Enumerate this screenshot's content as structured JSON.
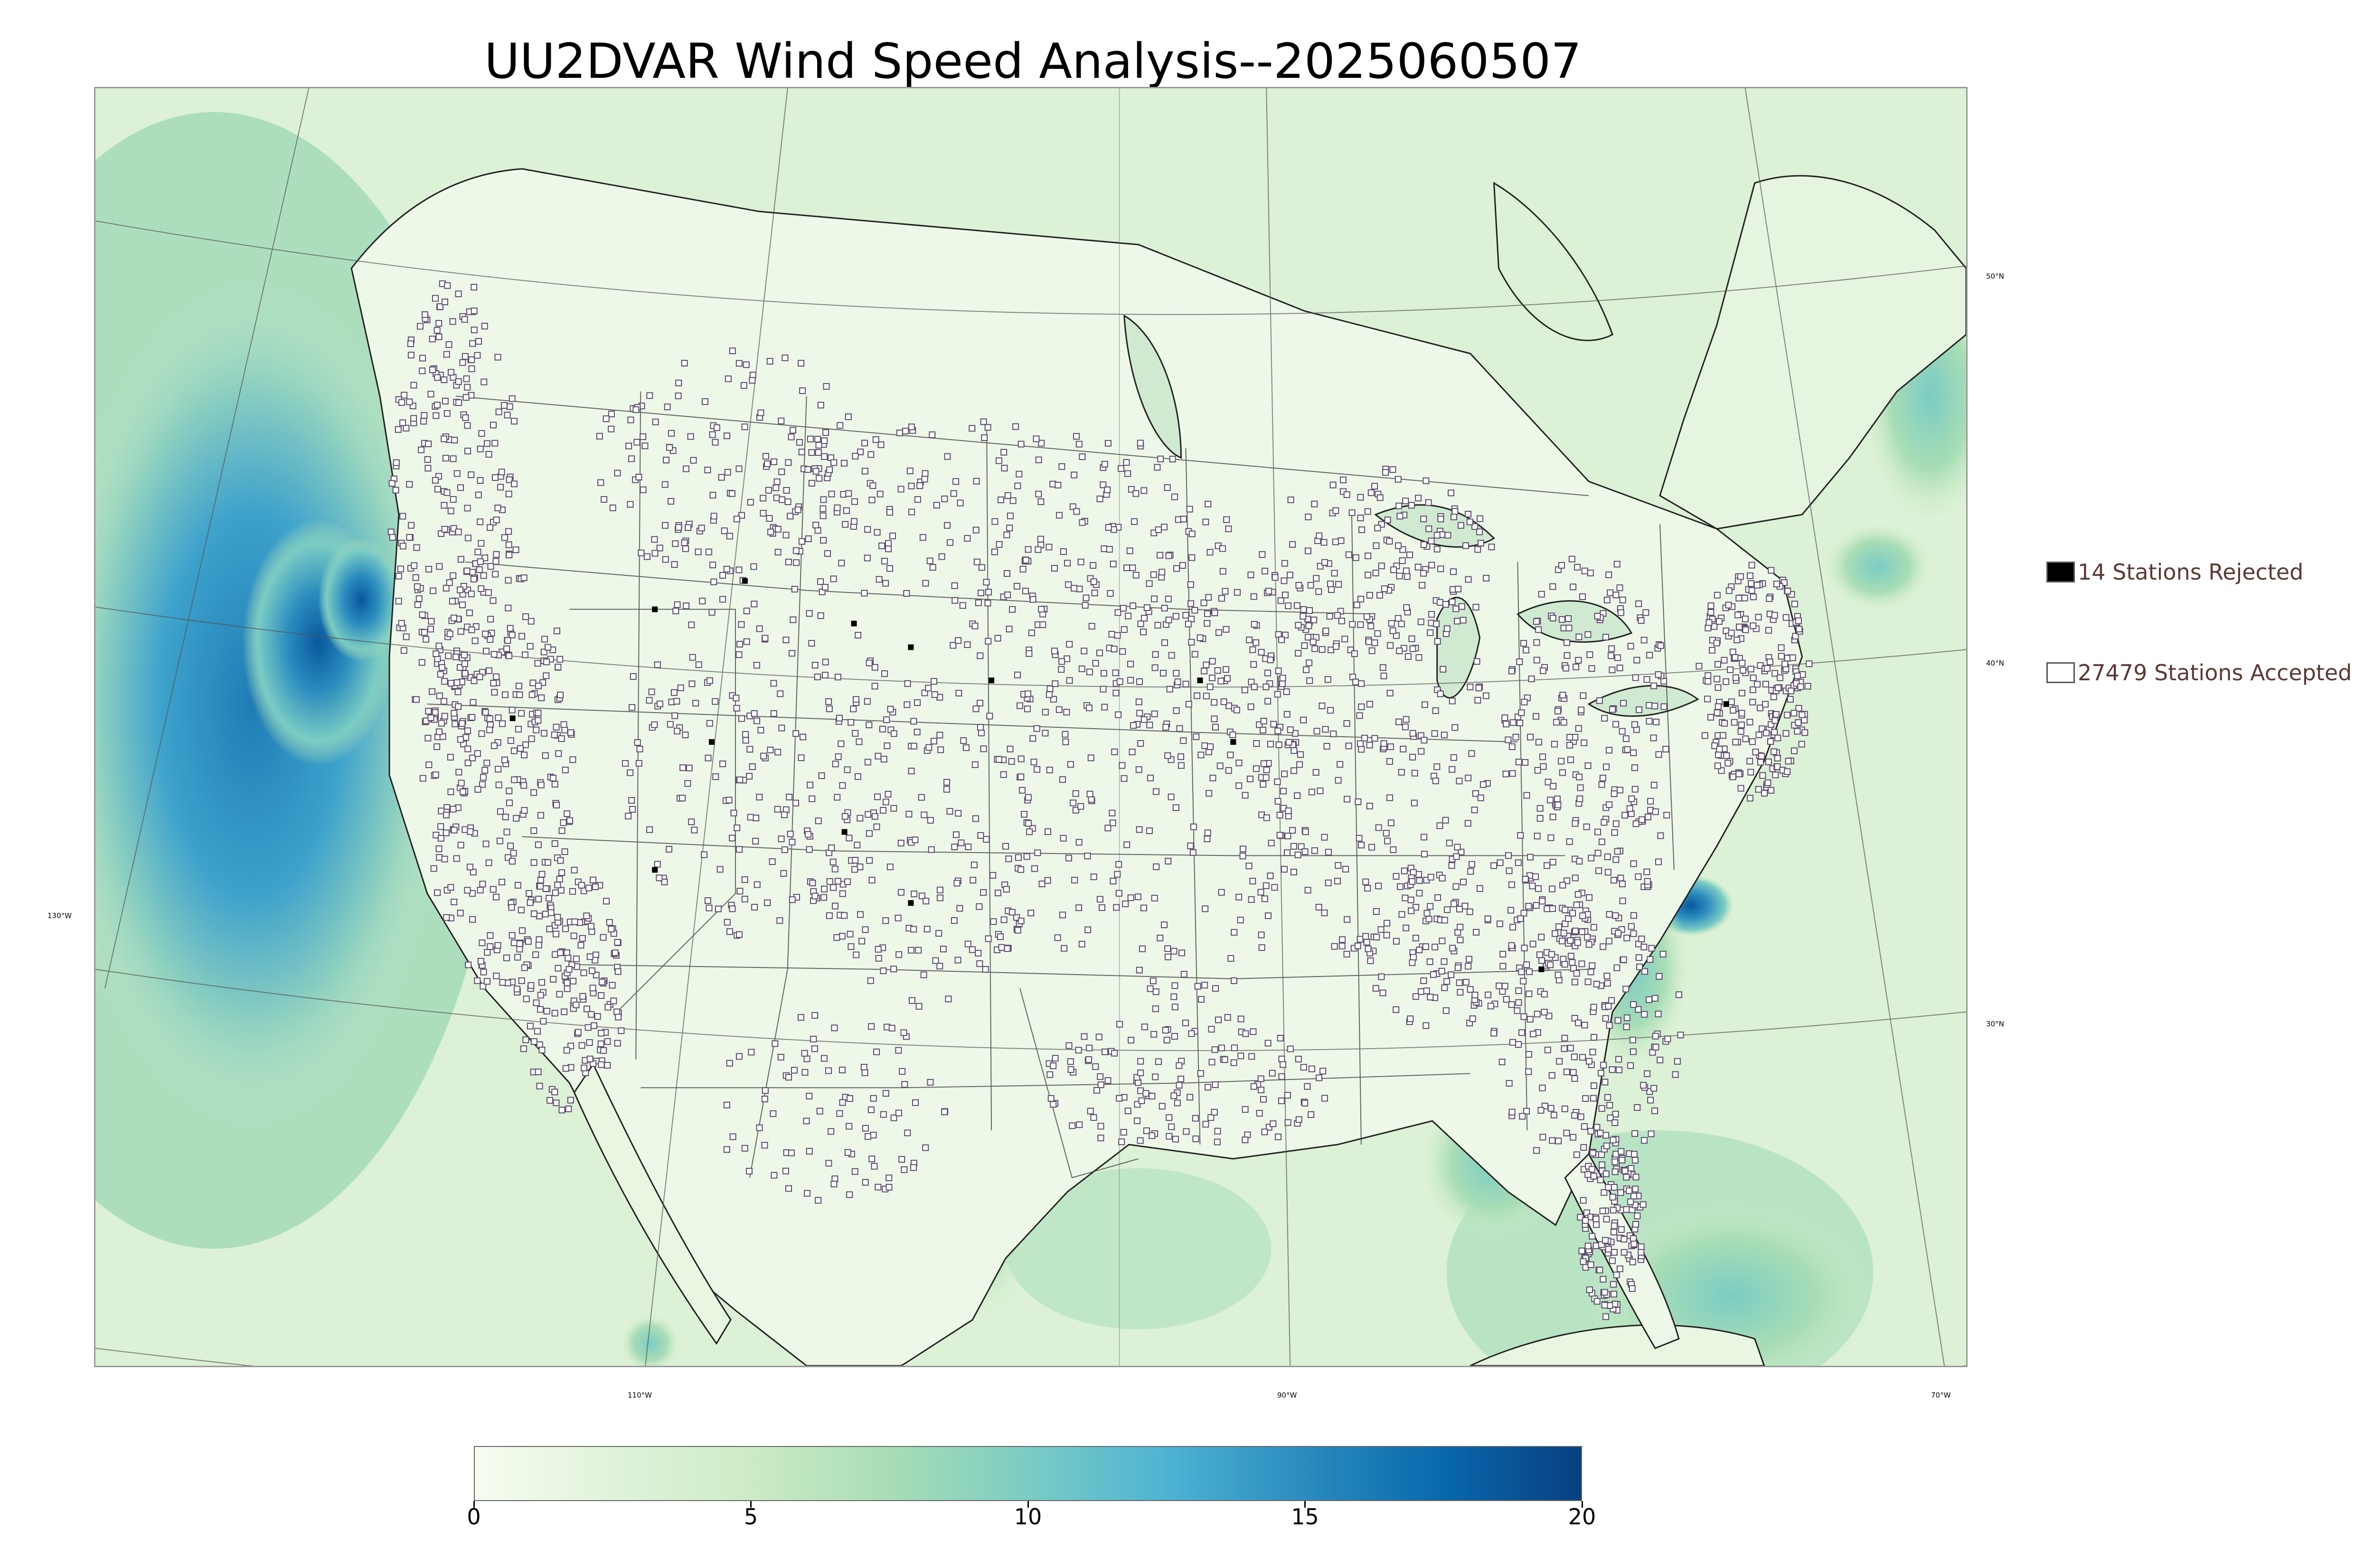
{
  "title": "UU2DVAR Wind Speed Analysis--2025060507",
  "graticule_labels": {
    "lat_50": "50°N",
    "lat_40": "40°N",
    "lat_30": "30°N",
    "lon_130": "130°W",
    "lon_110": "110°W",
    "lon_90": "90°W",
    "lon_70": "70°W"
  },
  "legend": {
    "rejected_label": "14 Stations Rejected",
    "rejected_color": "#000000",
    "accepted_label": "27479 Stations Accepted",
    "accepted_color": "#ffffff"
  },
  "colorbar": {
    "min": 0,
    "max": 20,
    "ticks": [
      {
        "value": 0,
        "label": "0"
      },
      {
        "value": 5,
        "label": "5"
      },
      {
        "value": 10,
        "label": "10"
      },
      {
        "value": 15,
        "label": "15"
      },
      {
        "value": 20,
        "label": "20"
      }
    ],
    "colormap": [
      "#f7fcf0",
      "#e0f3db",
      "#ccebc5",
      "#a8ddb5",
      "#7bccc4",
      "#4eb3d3",
      "#2b8cbe",
      "#0868ac",
      "#084081"
    ]
  },
  "colors": {
    "land": "#e9f6e2",
    "ocean_light": "#d6efcf",
    "ocean_mid": "#9fd6b8",
    "high_wind": "#2b8cbe",
    "max_wind": "#0868ac",
    "station_outline": "#5a4a6a"
  }
}
